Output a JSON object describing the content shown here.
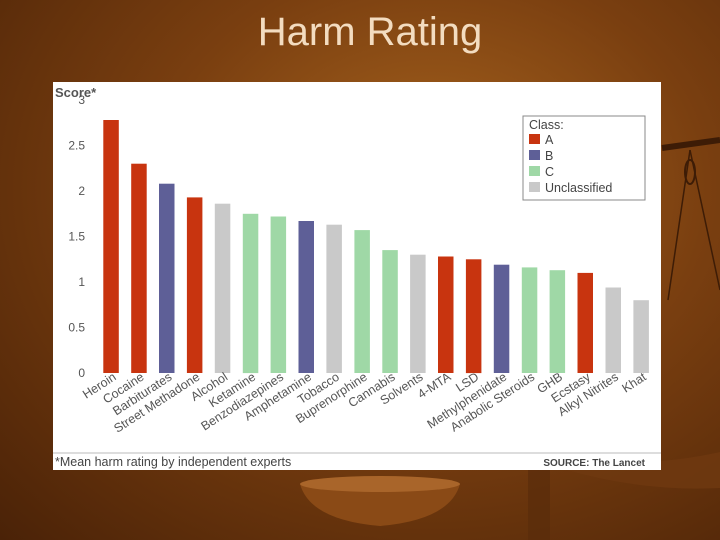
{
  "slide": {
    "title": "Harm Rating"
  },
  "chart_data": {
    "type": "bar",
    "ylabel": "Score*",
    "ylim": [
      0,
      3
    ],
    "yticks": [
      0,
      0.5,
      1,
      1.5,
      2,
      2.5,
      3
    ],
    "categories": [
      "Heroin",
      "Cocaine",
      "Barbiturates",
      "Street Methadone",
      "Alcohol",
      "Ketamine",
      "Benzodiazepines",
      "Amphetamine",
      "Tobacco",
      "Buprenorphine",
      "Cannabis",
      "Solvents",
      "4-MTA",
      "LSD",
      "Methylphenidate",
      "Anabolic Steroids",
      "GHB",
      "Ecstasy",
      "Alkyl Nitrites",
      "Khat"
    ],
    "values": [
      2.78,
      2.3,
      2.08,
      1.93,
      1.86,
      1.75,
      1.72,
      1.67,
      1.63,
      1.57,
      1.35,
      1.3,
      1.28,
      1.25,
      1.19,
      1.16,
      1.13,
      1.1,
      0.94,
      0.8
    ],
    "classes": [
      "A",
      "A",
      "B",
      "A",
      "U",
      "C",
      "C",
      "B",
      "U",
      "C",
      "C",
      "U",
      "A",
      "A",
      "B",
      "C",
      "C",
      "A",
      "U",
      "U"
    ],
    "legend": {
      "title": "Class:",
      "position": "top-right",
      "items": [
        {
          "key": "A",
          "label": "A",
          "color": "#c8340f"
        },
        {
          "key": "B",
          "label": "B",
          "color": "#5e5f97"
        },
        {
          "key": "C",
          "label": "C",
          "color": "#9fd8a6"
        },
        {
          "key": "U",
          "label": "Unclassified",
          "color": "#c9c9c9"
        }
      ]
    },
    "footnote": "*Mean harm rating by independent experts",
    "source": "SOURCE: The Lancet",
    "grid": false
  }
}
